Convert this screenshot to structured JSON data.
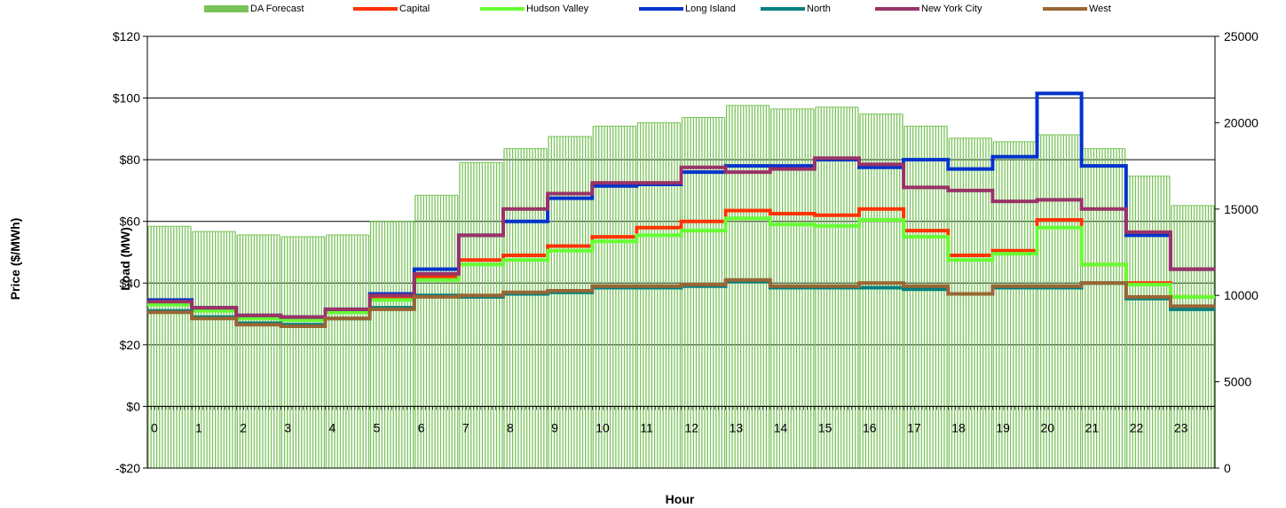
{
  "chart_data": {
    "type": "line",
    "title": "",
    "xlabel": "Hour",
    "ylabel": "Price ($/MWh)",
    "y2label": "Load (MW)",
    "ylim": [
      -20,
      120
    ],
    "y2lim": [
      0,
      25000
    ],
    "grid": true,
    "legend_position": "top",
    "x": [
      0,
      1,
      2,
      3,
      4,
      5,
      6,
      7,
      8,
      9,
      10,
      11,
      12,
      13,
      14,
      15,
      16,
      17,
      18,
      19,
      20,
      21,
      22,
      23
    ],
    "x_tick_labels": [
      "0",
      "1",
      "2",
      "3",
      "4",
      "5",
      "6",
      "7",
      "8",
      "9",
      "10",
      "11",
      "12",
      "13",
      "14",
      "15",
      "16",
      "17",
      "18",
      "19",
      "20",
      "21",
      "22",
      "23"
    ],
    "y_tick_labels": [
      "-$20",
      "$0",
      "$20",
      "$40",
      "$60",
      "$80",
      "$100",
      "$120"
    ],
    "y_tick_values": [
      -20,
      0,
      20,
      40,
      60,
      80,
      100,
      120
    ],
    "y2_tick_labels": [
      "0",
      "5000",
      "10000",
      "15000",
      "20000",
      "25000"
    ],
    "y2_tick_values": [
      0,
      5000,
      10000,
      15000,
      20000,
      25000
    ],
    "bar_series": {
      "name": "DA Forecast",
      "color": "#7ac35a",
      "axis": "right",
      "values": [
        14000,
        13700,
        13500,
        13400,
        13500,
        14300,
        15800,
        17700,
        18500,
        19200,
        19800,
        20000,
        20300,
        21000,
        20800,
        20900,
        20500,
        19800,
        19100,
        18900,
        19300,
        18500,
        16900,
        15200
      ]
    },
    "series": [
      {
        "name": "Capital",
        "color": "#ff3300",
        "values": [
          33.5,
          31.5,
          29,
          28.5,
          31,
          35,
          42,
          47.5,
          49,
          52,
          55,
          58,
          60,
          63.5,
          62.5,
          62,
          64,
          57,
          49,
          50.5,
          60.5,
          46,
          40,
          35.5
        ]
      },
      {
        "name": "Hudson Valley",
        "color": "#66ff33",
        "values": [
          33,
          31,
          28.5,
          28,
          30.5,
          34.5,
          41,
          46,
          47.5,
          50.5,
          53.5,
          55.5,
          57,
          61,
          59,
          58.5,
          60.5,
          55,
          47.5,
          49.5,
          58,
          46,
          39.5,
          35.5
        ]
      },
      {
        "name": "Long Island",
        "color": "#0033cc",
        "values": [
          34.5,
          32,
          29.5,
          29,
          31.5,
          36.5,
          44.5,
          55.5,
          60,
          67.5,
          71.5,
          72,
          76,
          78,
          78,
          80,
          77.5,
          80,
          77,
          81,
          101.5,
          78,
          55.5,
          44.5
        ]
      },
      {
        "name": "North",
        "color": "#008080",
        "values": [
          31,
          29,
          27,
          26.5,
          28.5,
          32,
          36,
          35.5,
          36.5,
          37,
          38.5,
          38.5,
          39,
          40.5,
          38.5,
          38.5,
          38.5,
          38,
          36.5,
          38.5,
          38.5,
          40,
          35,
          31.5
        ]
      },
      {
        "name": "New York City",
        "color": "#993366",
        "values": [
          34,
          32,
          29.5,
          29,
          31.5,
          36,
          43,
          55.5,
          64,
          69,
          72.5,
          72.5,
          77.5,
          76,
          77,
          80.5,
          78.5,
          71,
          70,
          66.5,
          67,
          64,
          56.5,
          44.5
        ]
      },
      {
        "name": "West",
        "color": "#996633",
        "values": [
          30.5,
          28.5,
          26.5,
          26,
          28.5,
          31.5,
          35.5,
          36,
          37,
          37.5,
          39,
          39,
          39.5,
          41,
          39,
          39,
          40,
          39,
          36.5,
          39,
          39,
          40,
          35.5,
          32.5
        ]
      }
    ]
  }
}
